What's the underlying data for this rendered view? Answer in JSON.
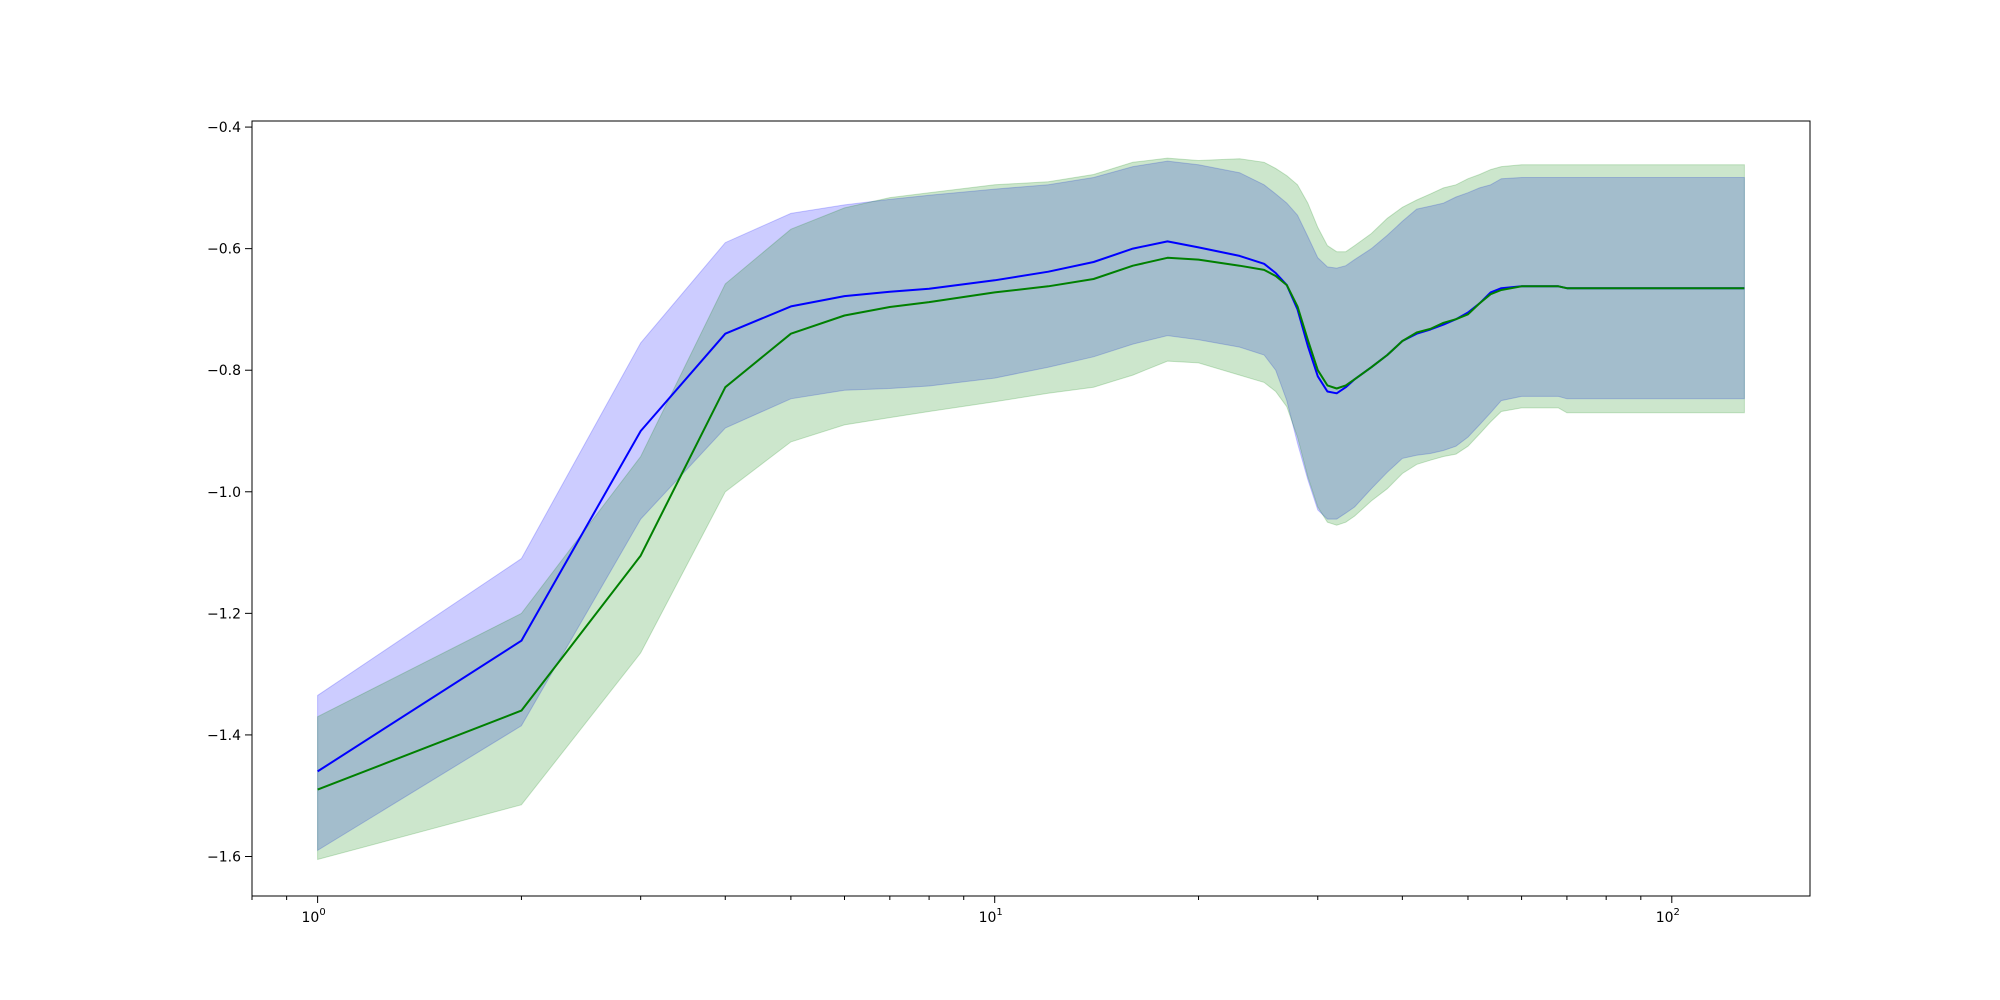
{
  "chart_data": {
    "type": "line",
    "title": "",
    "xlabel": "",
    "ylabel": "",
    "x_scale": "log",
    "xlim": [
      0.8,
      160
    ],
    "ylim": [
      -1.665,
      -0.39
    ],
    "x_ticks": [
      {
        "value": 1,
        "base": "10",
        "exp": "0"
      },
      {
        "value": 10,
        "base": "10",
        "exp": "1"
      },
      {
        "value": 100,
        "base": "10",
        "exp": "2"
      }
    ],
    "y_ticks": [
      {
        "value": -0.4,
        "label": "−0.4"
      },
      {
        "value": -0.6,
        "label": "−0.6"
      },
      {
        "value": -0.8,
        "label": "−0.8"
      },
      {
        "value": -1.0,
        "label": "−1.0"
      },
      {
        "value": -1.2,
        "label": "−1.2"
      },
      {
        "value": -1.4,
        "label": "−1.4"
      },
      {
        "value": -1.6,
        "label": "−1.6"
      }
    ],
    "grid": false,
    "legend": "none",
    "series": [
      {
        "color": "#0000ff",
        "band_color": "#0000ff",
        "band_opacity": 0.2,
        "x": [
          1,
          2,
          3,
          4,
          5,
          6,
          7,
          8,
          10,
          12,
          14,
          16,
          18,
          20,
          23,
          25,
          26,
          27,
          28,
          29,
          30,
          31,
          32,
          33,
          34,
          36,
          38,
          40,
          42,
          44,
          46,
          48,
          50,
          52,
          54,
          56,
          60,
          65,
          68,
          70,
          128
        ],
        "y": [
          -1.46,
          -1.245,
          -0.9,
          -0.74,
          -0.695,
          -0.678,
          -0.671,
          -0.666,
          -0.652,
          -0.638,
          -0.622,
          -0.6,
          -0.588,
          -0.598,
          -0.612,
          -0.625,
          -0.64,
          -0.66,
          -0.7,
          -0.76,
          -0.81,
          -0.835,
          -0.838,
          -0.828,
          -0.815,
          -0.795,
          -0.775,
          -0.752,
          -0.74,
          -0.733,
          -0.725,
          -0.716,
          -0.705,
          -0.69,
          -0.672,
          -0.665,
          -0.662,
          -0.662,
          -0.662,
          -0.665,
          -0.665
        ],
        "upper": [
          -1.335,
          -1.11,
          -0.755,
          -0.59,
          -0.542,
          -0.528,
          -0.519,
          -0.512,
          -0.502,
          -0.495,
          -0.483,
          -0.465,
          -0.456,
          -0.462,
          -0.475,
          -0.495,
          -0.51,
          -0.525,
          -0.545,
          -0.58,
          -0.615,
          -0.63,
          -0.632,
          -0.628,
          -0.618,
          -0.6,
          -0.578,
          -0.555,
          -0.535,
          -0.53,
          -0.525,
          -0.515,
          -0.508,
          -0.5,
          -0.495,
          -0.485,
          -0.483,
          -0.483,
          -0.483,
          -0.483,
          -0.483
        ],
        "lower": [
          -1.59,
          -1.385,
          -1.045,
          -0.895,
          -0.847,
          -0.833,
          -0.83,
          -0.826,
          -0.813,
          -0.795,
          -0.778,
          -0.757,
          -0.743,
          -0.75,
          -0.762,
          -0.775,
          -0.8,
          -0.85,
          -0.92,
          -0.98,
          -1.03,
          -1.045,
          -1.045,
          -1.035,
          -1.025,
          -0.995,
          -0.968,
          -0.945,
          -0.94,
          -0.937,
          -0.932,
          -0.925,
          -0.91,
          -0.89,
          -0.87,
          -0.85,
          -0.843,
          -0.843,
          -0.843,
          -0.847,
          -0.847
        ]
      },
      {
        "color": "#008000",
        "band_color": "#008000",
        "band_opacity": 0.2,
        "x": [
          1,
          2,
          3,
          4,
          5,
          6,
          7,
          8,
          10,
          12,
          14,
          16,
          18,
          20,
          23,
          25,
          26,
          27,
          28,
          29,
          30,
          31,
          32,
          33,
          34,
          36,
          38,
          40,
          42,
          44,
          46,
          48,
          50,
          52,
          54,
          56,
          60,
          65,
          68,
          70,
          128
        ],
        "y": [
          -1.49,
          -1.36,
          -1.105,
          -0.828,
          -0.74,
          -0.71,
          -0.696,
          -0.688,
          -0.672,
          -0.662,
          -0.65,
          -0.628,
          -0.615,
          -0.618,
          -0.628,
          -0.635,
          -0.645,
          -0.66,
          -0.695,
          -0.75,
          -0.8,
          -0.825,
          -0.83,
          -0.825,
          -0.815,
          -0.795,
          -0.775,
          -0.752,
          -0.738,
          -0.732,
          -0.722,
          -0.716,
          -0.708,
          -0.69,
          -0.675,
          -0.668,
          -0.662,
          -0.662,
          -0.662,
          -0.665,
          -0.665
        ],
        "upper": [
          -1.37,
          -1.2,
          -0.942,
          -0.658,
          -0.568,
          -0.533,
          -0.516,
          -0.508,
          -0.495,
          -0.49,
          -0.478,
          -0.458,
          -0.451,
          -0.455,
          -0.452,
          -0.458,
          -0.468,
          -0.48,
          -0.495,
          -0.525,
          -0.565,
          -0.595,
          -0.605,
          -0.605,
          -0.595,
          -0.575,
          -0.55,
          -0.532,
          -0.52,
          -0.51,
          -0.5,
          -0.495,
          -0.485,
          -0.478,
          -0.47,
          -0.465,
          -0.462,
          -0.462,
          -0.462,
          -0.462,
          -0.462
        ],
        "lower": [
          -1.605,
          -1.515,
          -1.265,
          -1.0,
          -0.918,
          -0.89,
          -0.878,
          -0.868,
          -0.852,
          -0.838,
          -0.828,
          -0.808,
          -0.785,
          -0.788,
          -0.808,
          -0.82,
          -0.835,
          -0.86,
          -0.91,
          -0.975,
          -1.025,
          -1.05,
          -1.055,
          -1.05,
          -1.04,
          -1.015,
          -0.995,
          -0.97,
          -0.955,
          -0.948,
          -0.942,
          -0.938,
          -0.925,
          -0.905,
          -0.885,
          -0.868,
          -0.862,
          -0.862,
          -0.862,
          -0.87,
          -0.87
        ]
      }
    ]
  }
}
